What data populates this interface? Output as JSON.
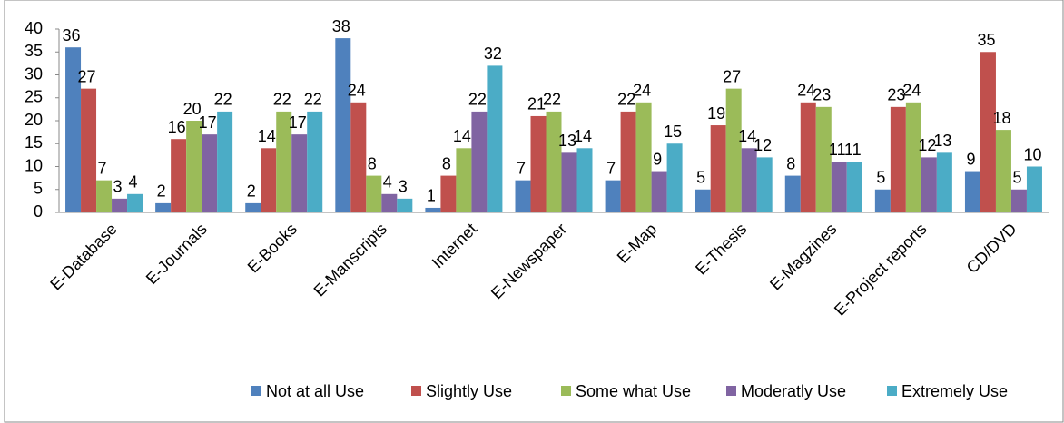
{
  "chart_data": {
    "type": "bar",
    "categories": [
      "E-Database",
      "E-Journals",
      "E-Books",
      "E-Manscripts",
      "Internet",
      "E-Newspaper",
      "E-Map",
      "E-Thesis",
      "E-Magzines",
      "E-Project reports",
      "CD/DVD"
    ],
    "series": [
      {
        "name": "Not at all Use",
        "color": "#4f81bd",
        "values": [
          36,
          2,
          2,
          38,
          1,
          7,
          7,
          5,
          8,
          5,
          9
        ]
      },
      {
        "name": "Slightly Use",
        "color": "#c0504d",
        "values": [
          27,
          16,
          14,
          24,
          8,
          21,
          22,
          19,
          24,
          23,
          35
        ]
      },
      {
        "name": "Some what Use",
        "color": "#9bbb59",
        "values": [
          7,
          20,
          22,
          8,
          14,
          22,
          24,
          27,
          23,
          24,
          18
        ]
      },
      {
        "name": "Moderatly Use",
        "color": "#8064a2",
        "values": [
          3,
          17,
          17,
          4,
          22,
          13,
          9,
          14,
          11,
          12,
          5
        ]
      },
      {
        "name": "Extremely Use",
        "color": "#4bacc6",
        "values": [
          4,
          22,
          22,
          3,
          32,
          14,
          15,
          12,
          11,
          13,
          10
        ]
      }
    ],
    "ylim": [
      0,
      40
    ],
    "yticks": [
      0,
      5,
      10,
      15,
      20,
      25,
      30,
      35,
      40
    ],
    "legend": "bottom"
  }
}
